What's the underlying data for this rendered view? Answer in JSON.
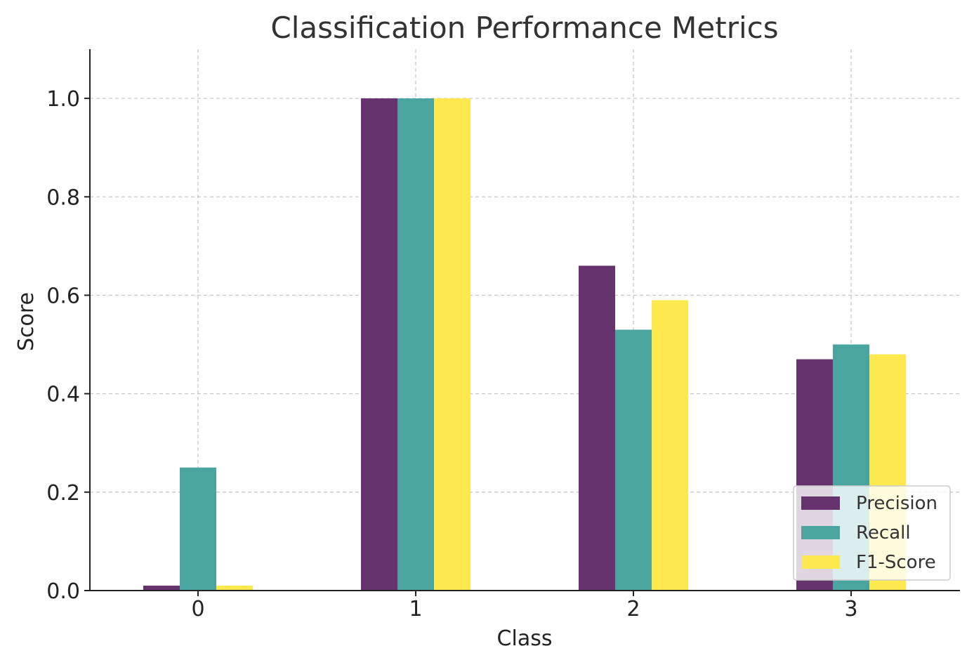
{
  "chart_data": {
    "type": "bar",
    "title": "Classification Performance Metrics",
    "xlabel": "Class",
    "ylabel": "Score",
    "categories": [
      "0",
      "1",
      "2",
      "3"
    ],
    "series": [
      {
        "name": "Precision",
        "color": "#67336f",
        "values": [
          0.01,
          1.0,
          0.66,
          0.47
        ]
      },
      {
        "name": "Recall",
        "color": "#4aa5a1",
        "values": [
          0.25,
          1.0,
          0.53,
          0.5
        ]
      },
      {
        "name": "F1-Score",
        "color": "#fde84e",
        "values": [
          0.01,
          1.0,
          0.59,
          0.48
        ]
      }
    ],
    "ylim": [
      0,
      1.1
    ],
    "yticks": [
      "0.0",
      "0.2",
      "0.4",
      "0.6",
      "0.8",
      "1.0"
    ],
    "grid": true,
    "legend_position": "lower-right"
  }
}
